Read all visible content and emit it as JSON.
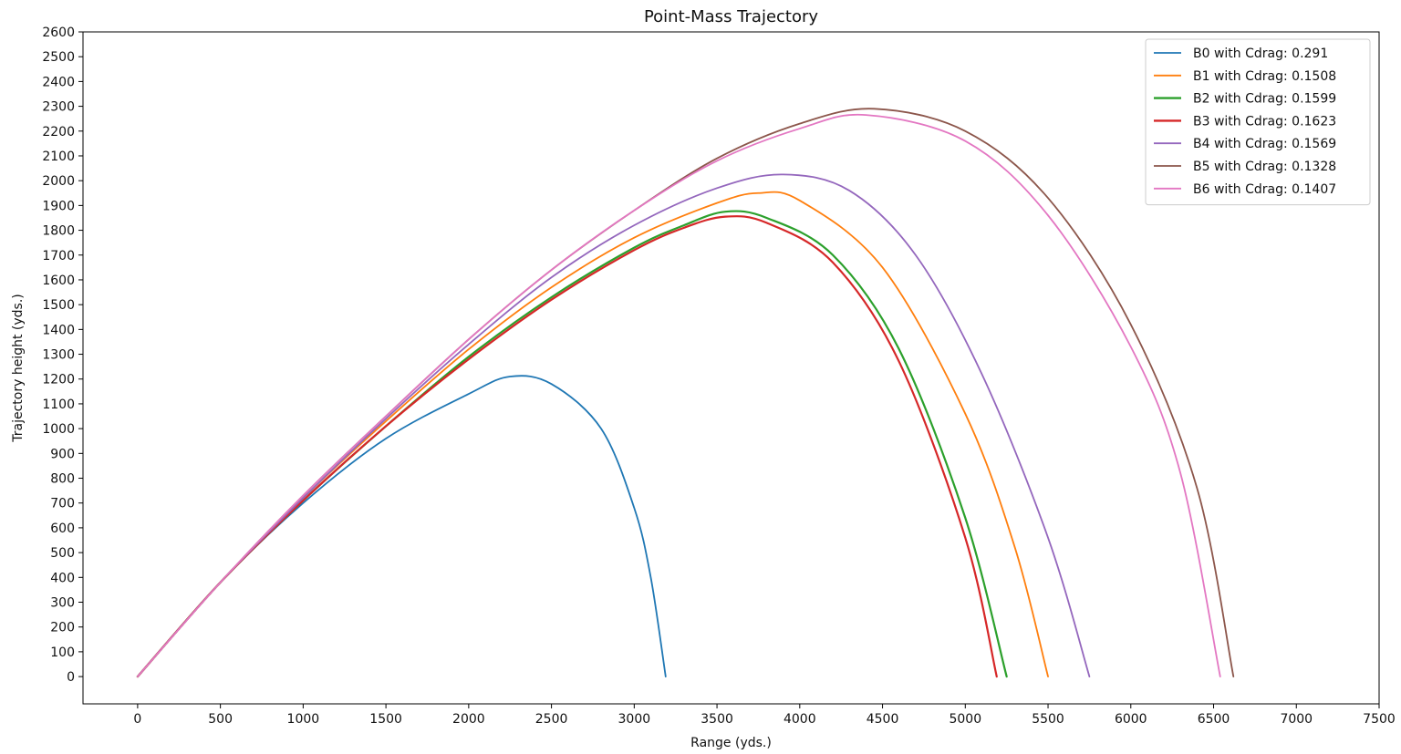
{
  "chart_data": {
    "type": "line",
    "title": "Point-Mass Trajectory",
    "xlabel": "Range (yds.)",
    "ylabel": "Trajectory height (yds.)",
    "xlim": [
      -330,
      7500
    ],
    "ylim": [
      -110,
      2600
    ],
    "xticks": [
      0,
      500,
      1000,
      1500,
      2000,
      2500,
      3000,
      3500,
      4000,
      4500,
      5000,
      5500,
      6000,
      6500,
      7000,
      7500
    ],
    "yticks": [
      0,
      100,
      200,
      300,
      400,
      500,
      600,
      700,
      800,
      900,
      1000,
      1100,
      1200,
      1300,
      1400,
      1500,
      1600,
      1700,
      1800,
      1900,
      2000,
      2100,
      2200,
      2300,
      2400,
      2500,
      2600
    ],
    "grid": false,
    "legend_position": "top-right",
    "series": [
      {
        "name": "B0 with Cdrag: 0.291",
        "color": "#1f77b4",
        "x": [
          0,
          500,
          1000,
          1500,
          2000,
          2250,
          2500,
          2800,
          3000,
          3100,
          3190
        ],
        "y": [
          0,
          380,
          700,
          960,
          1140,
          1210,
          1180,
          1000,
          680,
          400,
          0
        ]
      },
      {
        "name": "B1 with Cdrag: 0.1508",
        "color": "#ff7f0e",
        "x": [
          0,
          500,
          1000,
          1500,
          2000,
          2500,
          3000,
          3500,
          3750,
          4000,
          4500,
          5000,
          5300,
          5500
        ],
        "y": [
          0,
          380,
          720,
          1030,
          1320,
          1570,
          1770,
          1910,
          1950,
          1920,
          1650,
          1060,
          520,
          0
        ]
      },
      {
        "name": "B2 with Cdrag: 0.1599",
        "color": "#2ca02c",
        "x": [
          0,
          500,
          1000,
          1500,
          2000,
          2500,
          3000,
          3300,
          3550,
          3800,
          4200,
          4600,
          5000,
          5250
        ],
        "y": [
          0,
          380,
          710,
          1010,
          1290,
          1530,
          1730,
          1820,
          1875,
          1850,
          1700,
          1320,
          640,
          0
        ]
      },
      {
        "name": "B3 with Cdrag: 0.1623",
        "color": "#d62728",
        "x": [
          0,
          500,
          1000,
          1500,
          2000,
          2500,
          3000,
          3300,
          3550,
          3800,
          4200,
          4600,
          5000,
          5190
        ],
        "y": [
          0,
          380,
          710,
          1010,
          1280,
          1520,
          1720,
          1810,
          1855,
          1830,
          1670,
          1270,
          560,
          0
        ]
      },
      {
        "name": "B4 with Cdrag: 0.1569",
        "color": "#9467bd",
        "x": [
          0,
          500,
          1000,
          1500,
          2000,
          2500,
          3000,
          3500,
          3900,
          4300,
          4700,
          5100,
          5500,
          5750
        ],
        "y": [
          0,
          380,
          720,
          1040,
          1340,
          1610,
          1820,
          1970,
          2025,
          1960,
          1700,
          1220,
          560,
          0
        ]
      },
      {
        "name": "B5 with Cdrag: 0.1328",
        "color": "#8c564b",
        "x": [
          0,
          500,
          1000,
          1500,
          2000,
          2500,
          3000,
          3500,
          4000,
          4450,
          5000,
          5500,
          6000,
          6400,
          6620
        ],
        "y": [
          0,
          380,
          730,
          1050,
          1360,
          1640,
          1880,
          2090,
          2230,
          2290,
          2200,
          1930,
          1420,
          760,
          0
        ]
      },
      {
        "name": "B6 with Cdrag: 0.1407",
        "color": "#e377c2",
        "x": [
          0,
          500,
          1000,
          1500,
          2000,
          2500,
          3000,
          3500,
          4000,
          4400,
          5000,
          5500,
          6000,
          6300,
          6540
        ],
        "y": [
          0,
          380,
          730,
          1050,
          1360,
          1640,
          1880,
          2080,
          2210,
          2265,
          2160,
          1860,
          1330,
          820,
          0
        ]
      }
    ]
  }
}
